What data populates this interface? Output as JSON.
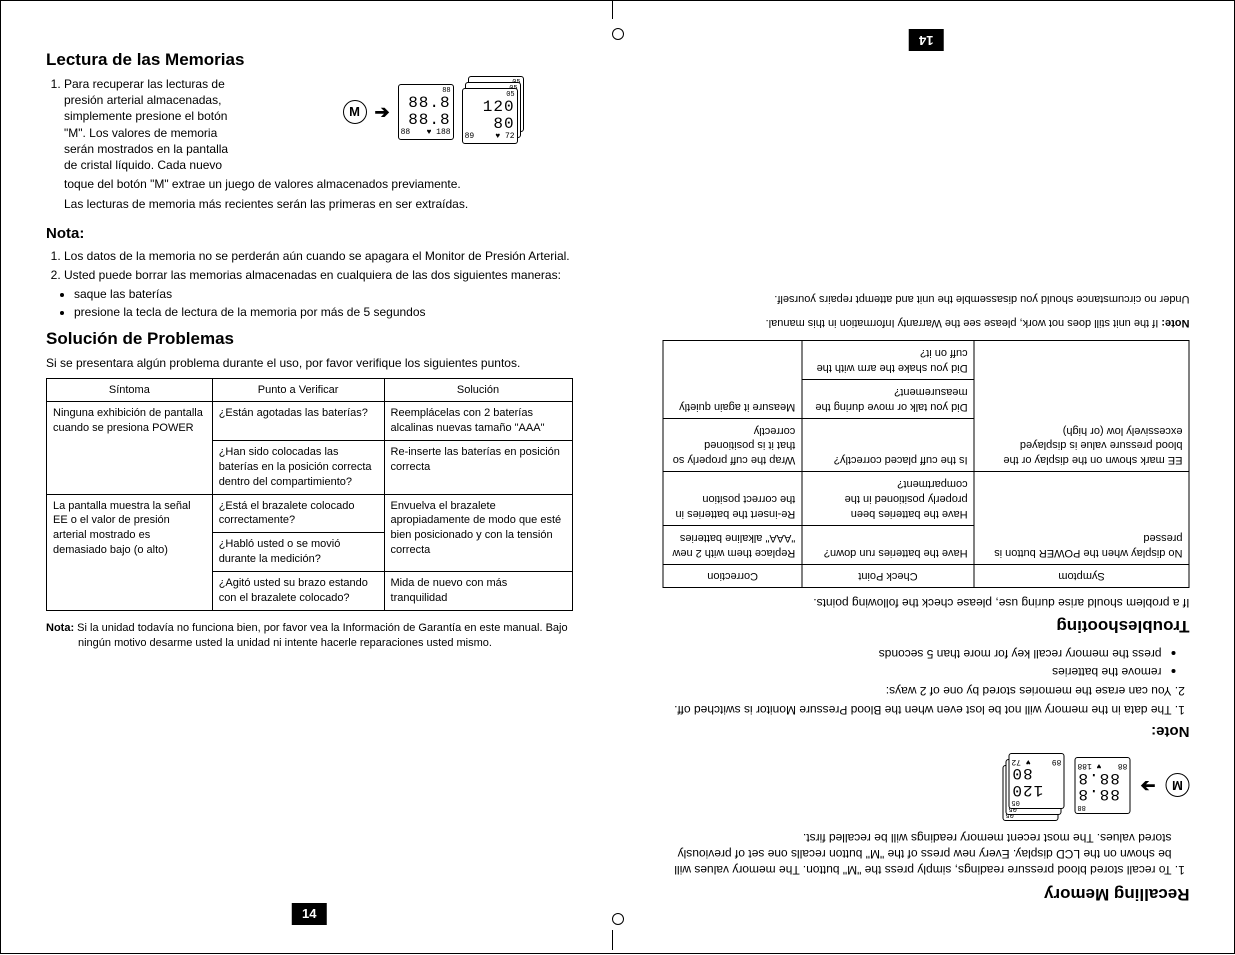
{
  "pagenum": "14",
  "fold_marks": {
    "top": true,
    "bottom": true
  },
  "left": {
    "h1": "Lectura de las Memorias",
    "list1_item1_lines": [
      "Para recuperar las lecturas de",
      "presión arterial almacenadas,",
      "simplemente presione el botón",
      "\"M\". Los valores de memoria",
      "serán mostrados en la pantalla",
      "de cristal líquido. Cada nuevo"
    ],
    "list1_item1_cont1": "toque del botón \"M\" extrae un juego de valores almacenados previamente.",
    "list1_item1_cont2": "Las lecturas de memoria más recientes serán las primeras en ser extraídas.",
    "h2": "Nota:",
    "note_items": [
      "Los datos de la memoria no se perderán aún cuando se apagara el Monitor de Presión Arterial.",
      "Usted puede borrar las memorias almacenadas en cualquiera de las dos siguientes maneras:"
    ],
    "note_bullets": [
      "saque las baterías",
      "presione la tecla de lectura de la memoria por más de 5 segundos"
    ],
    "h3": "Solución de Problemas",
    "trouble_intro": "Si se presentara algún problema durante el uso, por favor verifique los siguientes puntos.",
    "table": {
      "headers": [
        "Síntoma",
        "Punto a Verificar",
        "Solución"
      ],
      "rows": [
        {
          "symptom": "Ninguna exhibición de pantalla cuando se presiona POWER",
          "symptom_rowspan": 2,
          "checks": [
            "¿Están agotadas las baterías?",
            "¿Han sido colocadas las baterías en la posición correcta dentro del compartimiento?"
          ],
          "fixes": [
            "Reemplácelas con 2 baterías alcalinas nuevas tamaño \"AAA\"",
            "Re-inserte las baterías en posición correcta"
          ]
        },
        {
          "symptom": "La pantalla muestra la señal EE o el valor de presión arterial mostrado es demasiado bajo (o alto)",
          "symptom_rowspan": 3,
          "checks": [
            "¿Está el brazalete colocado correctamente?",
            "¿Habló usted o se movió durante la medición?",
            "¿Agitó usted su brazo estando con el brazalete colocado?"
          ],
          "fixes": [
            "Envuelva el brazalete apropiadamente de modo que esté bien posicionado y con la tensión correcta",
            "",
            "Mida de nuevo con más tranquilidad"
          ],
          "fix_merge_first_two": true
        }
      ]
    },
    "footnote_label": "Nota:",
    "footnote": "Si la unidad todavía no funciona bien, por favor vea la Información de Garantía en este manual. Bajo ningún motivo desarme usted la unidad ni intente hacerle reparaciones usted mismo."
  },
  "right": {
    "h1": "Recalling Memory",
    "list1_item1": "To recall stored blood pressure readings, simply press the \"M\" button. The memory values will be shown on the LCD display. Every new press of the \"M\" button recalls one set of previously stored values. The most recent memory readings will be recalled first.",
    "h2": "Note:",
    "note_items": [
      "The data in the memory will not be lost even when the Blood Pressure Monitor is switched off.",
      "You can erase the memories stored by one of 2 ways:"
    ],
    "note_bullets": [
      "remove the batteries",
      "press the memory recall key for more than 5 seconds"
    ],
    "h3": "Troubleshooting",
    "trouble_intro": "If a problem should arise during use, please check the following points.",
    "table": {
      "headers": [
        "Symptom",
        "Check Point",
        "Correction"
      ],
      "rows": [
        {
          "symptom": "No display when the POWER button is pressed",
          "symptom_rowspan": 2,
          "checks": [
            "Have the batteries run down?",
            "Have the batteries been properly positioned in the compartment?"
          ],
          "fixes": [
            "Replace them with 2 new \"AAA\" alkaline batteries",
            "Re-insert the batteries in the correct position"
          ]
        },
        {
          "symptom": "EE mark shown on the display or the blood pressure value is displayed excessively low (or high)",
          "symptom_rowspan": 3,
          "checks": [
            "Is the cuff placed correctly?",
            "Did you talk or move during the measurement?",
            "Did you shake the arm with the cuff on it?"
          ],
          "fixes": [
            "Wrap the cuff properly so that it is positioned correctly",
            "Measure it again quietly",
            ""
          ],
          "fix_merge_last_two": true
        }
      ]
    },
    "footnote_label": "Note:",
    "footnote1": "If the unit still does not work, please see the Warranty Information in this manual.",
    "footnote2": "Under no circumstance should you disassemble the unit and attempt repairs yourself."
  },
  "lcd": {
    "m_label": "M",
    "arrow": "➔",
    "main_display": {
      "l1": "88.8",
      "l2": "88.8",
      "bl": "88",
      "br": "♥ 188",
      "tr_small": "88"
    },
    "stack_display": {
      "l1": "120",
      "l2": "80",
      "bl": "89",
      "br": "♥ 72",
      "tr_small": "05"
    }
  },
  "colors": {
    "text": "#000000",
    "bg": "#ffffff",
    "pagenum_bg": "#000000",
    "pagenum_fg": "#ffffff"
  }
}
